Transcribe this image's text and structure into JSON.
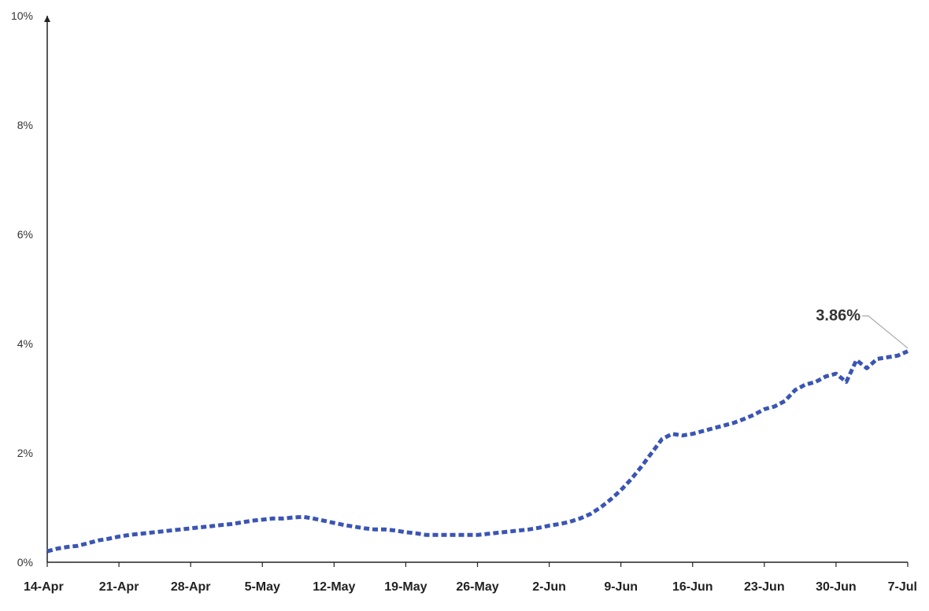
{
  "chart_data": {
    "type": "line",
    "title": "",
    "xlabel": "",
    "ylabel": "",
    "ylim": [
      0,
      10
    ],
    "yticks": [
      "0%",
      "2%",
      "4%",
      "6%",
      "8%",
      "10%"
    ],
    "ytick_values": [
      0,
      2,
      4,
      6,
      8,
      10
    ],
    "xticks": [
      "14-Apr",
      "21-Apr",
      "28-Apr",
      "5-May",
      "12-May",
      "19-May",
      "26-May",
      "2-Jun",
      "9-Jun",
      "16-Jun",
      "23-Jun",
      "30-Jun",
      "7-Jul"
    ],
    "xtick_days": [
      0,
      7,
      14,
      21,
      28,
      35,
      42,
      49,
      56,
      63,
      70,
      77,
      84
    ],
    "grid": false,
    "legend": "none",
    "line_color": "#3a55b4",
    "line_style": "dotted",
    "series": [
      {
        "x": [
          0,
          1,
          2,
          3,
          4,
          5,
          6,
          7,
          8,
          9,
          10,
          11,
          12,
          13,
          14,
          15,
          16,
          17,
          18,
          19,
          20,
          21,
          22,
          23,
          24,
          25,
          26,
          27,
          28,
          29,
          30,
          31,
          32,
          33,
          34,
          35,
          36,
          37,
          38,
          39,
          40,
          41,
          42,
          43,
          44,
          45,
          46,
          47,
          48,
          49,
          50,
          51,
          52,
          53,
          54,
          55,
          56,
          57,
          58,
          59,
          60,
          61,
          62,
          63,
          64,
          65,
          66,
          67,
          68,
          69,
          70,
          71,
          72,
          73,
          74,
          75,
          76,
          77,
          78,
          79,
          80,
          81,
          82,
          83,
          84
        ],
        "values": [
          0.2,
          0.25,
          0.28,
          0.3,
          0.35,
          0.4,
          0.43,
          0.47,
          0.5,
          0.52,
          0.54,
          0.56,
          0.58,
          0.6,
          0.62,
          0.64,
          0.66,
          0.68,
          0.7,
          0.73,
          0.76,
          0.78,
          0.8,
          0.8,
          0.82,
          0.83,
          0.8,
          0.76,
          0.72,
          0.68,
          0.65,
          0.62,
          0.6,
          0.6,
          0.58,
          0.55,
          0.53,
          0.5,
          0.5,
          0.5,
          0.5,
          0.5,
          0.5,
          0.52,
          0.54,
          0.56,
          0.58,
          0.6,
          0.63,
          0.67,
          0.7,
          0.74,
          0.8,
          0.88,
          1.0,
          1.15,
          1.32,
          1.52,
          1.75,
          2.0,
          2.25,
          2.35,
          2.32,
          2.35,
          2.4,
          2.45,
          2.5,
          2.55,
          2.62,
          2.7,
          2.8,
          2.85,
          2.95,
          3.15,
          3.25,
          3.3,
          3.4,
          3.45,
          3.3,
          3.7,
          3.55,
          3.72,
          3.75,
          3.78,
          3.86
        ]
      }
    ],
    "annotations": [
      {
        "text": "3.86%",
        "x": 84,
        "y": 3.86
      }
    ]
  }
}
